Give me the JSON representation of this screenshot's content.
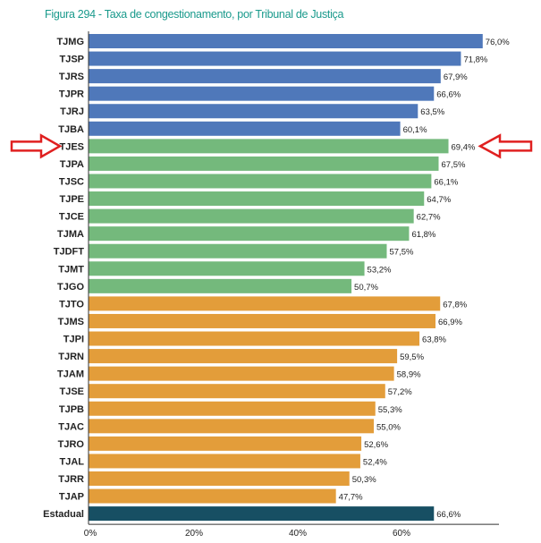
{
  "chart_data": {
    "type": "bar",
    "orientation": "horizontal",
    "title": "Figura 294 - Taxa de congestionamento, por Tribunal de Justiça",
    "xlabel": "",
    "ylabel": "",
    "xlim": [
      0,
      80
    ],
    "xticks": [
      "0%",
      "20%",
      "40%",
      "60%"
    ],
    "xtick_values": [
      0,
      20,
      40,
      60
    ],
    "categories": [
      "TJMG",
      "TJSP",
      "TJRS",
      "TJPR",
      "TJRJ",
      "TJBA",
      "TJES",
      "TJPA",
      "TJSC",
      "TJPE",
      "TJCE",
      "TJMA",
      "TJDFT",
      "TJMT",
      "TJGO",
      "TJTO",
      "TJMS",
      "TJPI",
      "TJRN",
      "TJAM",
      "TJSE",
      "TJPB",
      "TJAC",
      "TJRO",
      "TJAL",
      "TJRR",
      "TJAP",
      "Estadual"
    ],
    "values": [
      76.0,
      71.8,
      67.9,
      66.6,
      63.5,
      60.1,
      69.4,
      67.5,
      66.1,
      64.7,
      62.7,
      61.8,
      57.5,
      53.2,
      50.7,
      67.8,
      66.9,
      63.8,
      59.5,
      58.9,
      57.2,
      55.3,
      55.0,
      52.6,
      52.4,
      50.3,
      47.7,
      66.6
    ],
    "labels": [
      "76,0%",
      "71,8%",
      "67,9%",
      "66,6%",
      "63,5%",
      "60,1%",
      "69,4%",
      "67,5%",
      "66,1%",
      "64,7%",
      "62,7%",
      "61,8%",
      "57,5%",
      "53,2%",
      "50,7%",
      "67,8%",
      "66,9%",
      "63,8%",
      "59,5%",
      "58,9%",
      "57,2%",
      "55,3%",
      "55,0%",
      "52,6%",
      "52,4%",
      "50,3%",
      "47,7%",
      "66,6%"
    ],
    "groups": [
      "large",
      "large",
      "large",
      "large",
      "large",
      "large",
      "medium",
      "medium",
      "medium",
      "medium",
      "medium",
      "medium",
      "medium",
      "medium",
      "medium",
      "small",
      "small",
      "small",
      "small",
      "small",
      "small",
      "small",
      "small",
      "small",
      "small",
      "small",
      "small",
      "total"
    ],
    "colors": {
      "large": "#4f78ba",
      "medium": "#74b97c",
      "small": "#e39d3a",
      "total": "#174f63",
      "title": "#1a9a8c",
      "arrow": "#e02020"
    },
    "highlight": "TJES",
    "grid": false,
    "legend": "none"
  }
}
